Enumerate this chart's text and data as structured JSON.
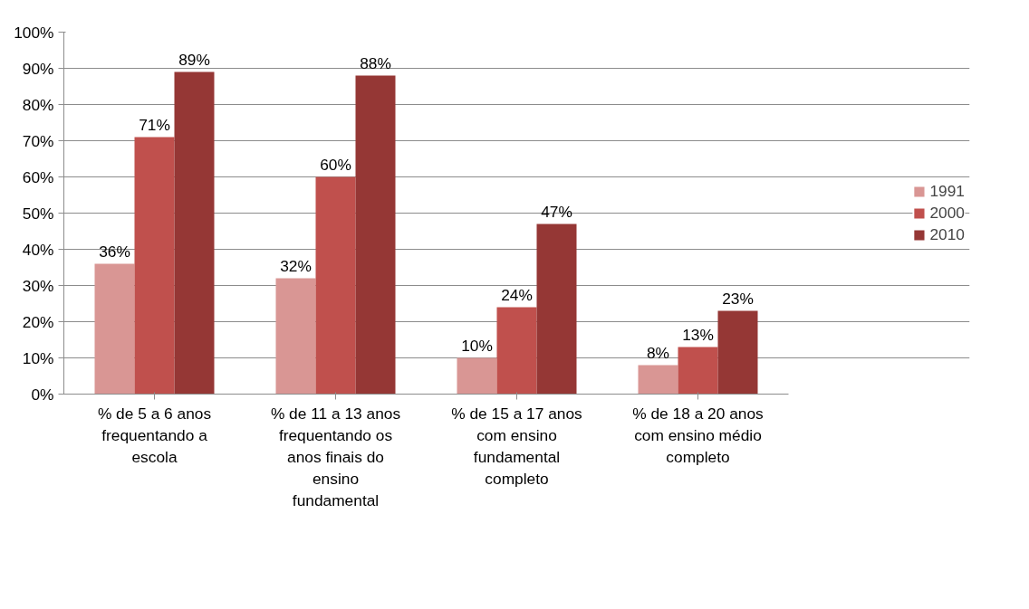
{
  "chart_data": {
    "type": "bar",
    "categories": [
      "% de 5 a 6 anos frequentando a escola",
      "% de 11 a 13 anos frequentando os anos finais do ensino fundamental",
      "% de 15 a 17 anos com ensino fundamental completo",
      "% de 18 a 20 anos com ensino médio completo"
    ],
    "series": [
      {
        "name": "1991",
        "color": "#d99694",
        "values": [
          36,
          32,
          10,
          8
        ]
      },
      {
        "name": "2000",
        "color": "#c0504d",
        "values": [
          71,
          60,
          24,
          13
        ]
      },
      {
        "name": "2010",
        "color": "#953735",
        "values": [
          89,
          88,
          47,
          23
        ]
      }
    ],
    "ylim": [
      0,
      100
    ],
    "yticks": [
      {
        "value": 0,
        "label": "0%"
      },
      {
        "value": 10,
        "label": "10%"
      },
      {
        "value": 20,
        "label": "20%"
      },
      {
        "value": 30,
        "label": "30%"
      },
      {
        "value": 40,
        "label": "40%"
      },
      {
        "value": 50,
        "label": "50%"
      },
      {
        "value": 60,
        "label": "60%"
      },
      {
        "value": 70,
        "label": "70%"
      },
      {
        "value": 80,
        "label": "80%"
      },
      {
        "value": 90,
        "label": "90%"
      },
      {
        "value": 100,
        "label": "100%"
      }
    ],
    "value_labels": [
      [
        "36%",
        "32%",
        "10%",
        "8%"
      ],
      [
        "71%",
        "60%",
        "24%",
        "13%"
      ],
      [
        "89%",
        "88%",
        "47%",
        "23%"
      ]
    ],
    "grid": "y",
    "legend": "right"
  }
}
